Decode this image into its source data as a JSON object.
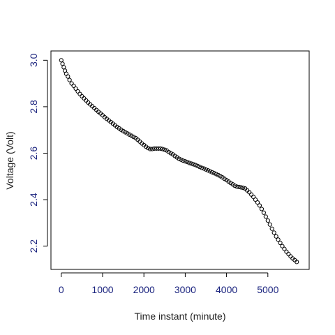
{
  "chart_data": {
    "type": "scatter",
    "title": "",
    "xlabel": "Time instant (minute)",
    "ylabel": "Voltage (Volt)",
    "xlim": [
      -250,
      6000
    ],
    "ylim": [
      2.1,
      3.04
    ],
    "x_ticks": [
      0,
      1000,
      2000,
      3000,
      4000,
      5000
    ],
    "y_ticks": [
      2.2,
      2.4,
      2.6,
      2.8,
      3.0
    ],
    "x_tick_labels": [
      "0",
      "1000",
      "2000",
      "3000",
      "4000",
      "5000"
    ],
    "y_tick_labels": [
      "2.2",
      "2.4",
      "2.6",
      "2.8",
      "3.0"
    ],
    "grid": false,
    "marker": "open-circle",
    "series": [
      {
        "points": [
          [
            0,
            3.0
          ],
          [
            30,
            2.985
          ],
          [
            60,
            2.97
          ],
          [
            90,
            2.955
          ],
          [
            120,
            2.942
          ],
          [
            160,
            2.93
          ],
          [
            200,
            2.915
          ],
          [
            250,
            2.9
          ],
          [
            300,
            2.89
          ],
          [
            350,
            2.878
          ],
          [
            400,
            2.866
          ],
          [
            450,
            2.855
          ],
          [
            500,
            2.845
          ],
          [
            550,
            2.836
          ],
          [
            600,
            2.827
          ],
          [
            650,
            2.818
          ],
          [
            700,
            2.81
          ],
          [
            750,
            2.802
          ],
          [
            800,
            2.794
          ],
          [
            850,
            2.786
          ],
          [
            900,
            2.778
          ],
          [
            950,
            2.771
          ],
          [
            1000,
            2.763
          ],
          [
            1050,
            2.755
          ],
          [
            1100,
            2.748
          ],
          [
            1150,
            2.741
          ],
          [
            1200,
            2.734
          ],
          [
            1250,
            2.727
          ],
          [
            1300,
            2.72
          ],
          [
            1350,
            2.713
          ],
          [
            1400,
            2.707
          ],
          [
            1450,
            2.701
          ],
          [
            1500,
            2.695
          ],
          [
            1550,
            2.69
          ],
          [
            1600,
            2.685
          ],
          [
            1650,
            2.68
          ],
          [
            1700,
            2.675
          ],
          [
            1750,
            2.67
          ],
          [
            1800,
            2.665
          ],
          [
            1850,
            2.658
          ],
          [
            1900,
            2.65
          ],
          [
            1950,
            2.642
          ],
          [
            2000,
            2.635
          ],
          [
            2050,
            2.628
          ],
          [
            2100,
            2.622
          ],
          [
            2150,
            2.618
          ],
          [
            2200,
            2.618
          ],
          [
            2250,
            2.62
          ],
          [
            2300,
            2.62
          ],
          [
            2350,
            2.62
          ],
          [
            2400,
            2.62
          ],
          [
            2450,
            2.618
          ],
          [
            2500,
            2.615
          ],
          [
            2550,
            2.612
          ],
          [
            2600,
            2.605
          ],
          [
            2650,
            2.6
          ],
          [
            2700,
            2.595
          ],
          [
            2750,
            2.588
          ],
          [
            2800,
            2.582
          ],
          [
            2850,
            2.576
          ],
          [
            2900,
            2.572
          ],
          [
            2950,
            2.568
          ],
          [
            3000,
            2.565
          ],
          [
            3050,
            2.562
          ],
          [
            3100,
            2.558
          ],
          [
            3150,
            2.555
          ],
          [
            3200,
            2.552
          ],
          [
            3250,
            2.549
          ],
          [
            3300,
            2.545
          ],
          [
            3350,
            2.541
          ],
          [
            3400,
            2.537
          ],
          [
            3450,
            2.534
          ],
          [
            3500,
            2.53
          ],
          [
            3550,
            2.526
          ],
          [
            3600,
            2.522
          ],
          [
            3650,
            2.518
          ],
          [
            3700,
            2.514
          ],
          [
            3750,
            2.51
          ],
          [
            3800,
            2.506
          ],
          [
            3850,
            2.501
          ],
          [
            3900,
            2.496
          ],
          [
            3950,
            2.49
          ],
          [
            4000,
            2.484
          ],
          [
            4050,
            2.478
          ],
          [
            4100,
            2.472
          ],
          [
            4150,
            2.466
          ],
          [
            4200,
            2.46
          ],
          [
            4250,
            2.456
          ],
          [
            4300,
            2.455
          ],
          [
            4350,
            2.453
          ],
          [
            4400,
            2.451
          ],
          [
            4450,
            2.448
          ],
          [
            4500,
            2.44
          ],
          [
            4550,
            2.432
          ],
          [
            4600,
            2.422
          ],
          [
            4650,
            2.412
          ],
          [
            4700,
            2.4
          ],
          [
            4750,
            2.388
          ],
          [
            4800,
            2.375
          ],
          [
            4850,
            2.36
          ],
          [
            4900,
            2.344
          ],
          [
            4950,
            2.327
          ],
          [
            5000,
            2.31
          ],
          [
            5050,
            2.293
          ],
          [
            5100,
            2.275
          ],
          [
            5150,
            2.258
          ],
          [
            5200,
            2.242
          ],
          [
            5250,
            2.228
          ],
          [
            5300,
            2.214
          ],
          [
            5350,
            2.2
          ],
          [
            5400,
            2.188
          ],
          [
            5450,
            2.176
          ],
          [
            5500,
            2.166
          ],
          [
            5550,
            2.156
          ],
          [
            5600,
            2.147
          ],
          [
            5650,
            2.14
          ],
          [
            5700,
            2.132
          ]
        ]
      }
    ]
  }
}
